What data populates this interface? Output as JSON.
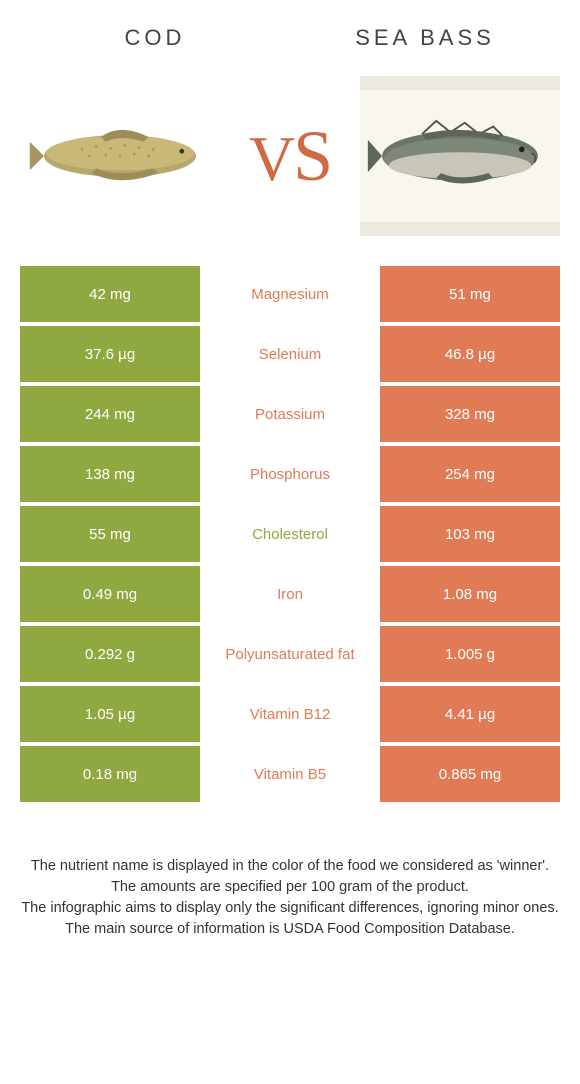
{
  "colors": {
    "left": "#8fa83f",
    "right": "#e07b55",
    "mid_text_winner_left": "#8fa83f",
    "mid_text_winner_right": "#e07b55"
  },
  "header": {
    "left_title": "COD",
    "right_title": "SEA BASS",
    "vs": "VS"
  },
  "rows": [
    {
      "left": "42 mg",
      "label": "Magnesium",
      "right": "51 mg",
      "winner": "right"
    },
    {
      "left": "37.6 µg",
      "label": "Selenium",
      "right": "46.8 µg",
      "winner": "right"
    },
    {
      "left": "244 mg",
      "label": "Potassium",
      "right": "328 mg",
      "winner": "right"
    },
    {
      "left": "138 mg",
      "label": "Phosphorus",
      "right": "254 mg",
      "winner": "right"
    },
    {
      "left": "55 mg",
      "label": "Cholesterol",
      "right": "103 mg",
      "winner": "left"
    },
    {
      "left": "0.49 mg",
      "label": "Iron",
      "right": "1.08 mg",
      "winner": "right"
    },
    {
      "left": "0.292 g",
      "label": "Polyunsaturated fat",
      "right": "1.005 g",
      "winner": "right"
    },
    {
      "left": "1.05 µg",
      "label": "Vitamin B12",
      "right": "4.41 µg",
      "winner": "right"
    },
    {
      "left": "0.18 mg",
      "label": "Vitamin B5",
      "right": "0.865 mg",
      "winner": "right"
    }
  ],
  "footer": {
    "line1": "The nutrient name is displayed in the color of the food we considered as 'winner'.",
    "line2": "The amounts are specified per 100 gram of the product.",
    "line3": "The infographic aims to display only the significant differences, ignoring minor ones.",
    "line4": "The main source of information is USDA Food Composition Database."
  }
}
